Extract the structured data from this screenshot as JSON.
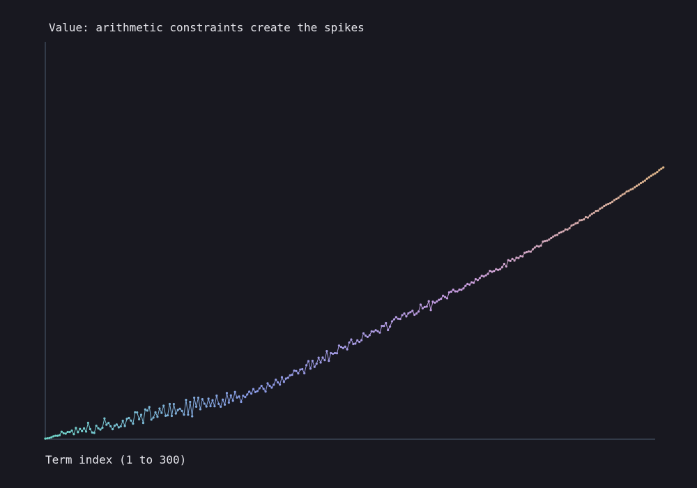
{
  "chart_data": {
    "type": "line",
    "title": "Value: arithmetic constraints create the spikes",
    "xlabel": "Term index (1 to 300)",
    "ylabel": "",
    "xlim": [
      1,
      300
    ],
    "ylim": [
      0,
      6000
    ],
    "grid": false,
    "legend": "none",
    "line_color_gradient": [
      "#6fd6c8",
      "#8a9be6",
      "#c79ce0",
      "#e2b88a"
    ],
    "axis_color": "#3a4656",
    "background": "#181820",
    "series": [
      {
        "values": [
          9,
          14,
          18,
          29,
          43,
          52,
          51,
          61,
          114,
          89,
          84,
          111,
          109,
          129,
          76,
          170,
          107,
          156,
          121,
          164,
          116,
          247,
          153,
          101,
          95,
          202,
          163,
          146,
          173,
          313,
          219,
          246,
          195,
          151,
          204,
          222,
          179,
          193,
          278,
          199,
          307,
          321,
          281,
          234,
          406,
          404,
          301,
          369,
          246,
          449,
          432,
          486,
          296,
          326,
          405,
          338,
          464,
          398,
          506,
          354,
          361,
          532,
          352,
          531,
          388,
          441,
          460,
          428,
          370,
          593,
          370,
          563,
          346,
          626,
          491,
          627,
          453,
          604,
          537,
          493,
          612,
          499,
          590,
          498,
          658,
          533,
          491,
          597,
          522,
          698,
          552,
          662,
          580,
          714,
          629,
          645,
          563,
          656,
          635,
          675,
          718,
          689,
          757,
          712,
          727,
          768,
          806,
          761,
          720,
          844,
          807,
          779,
          823,
          898,
          858,
          825,
          937,
          866,
          916,
          927,
          964,
          973,
          1035,
          1029,
          993,
          1052,
          1058,
          996,
          1117,
          1179,
          1066,
          1183,
          1092,
          1140,
          1230,
          1158,
          1233,
          1193,
          1330,
          1183,
          1300,
          1290,
          1300,
          1298,
          1414,
          1393,
          1375,
          1397,
          1357,
          1460,
          1506,
          1437,
          1443,
          1493,
          1468,
          1495,
          1599,
          1565,
          1543,
          1570,
          1629,
          1623,
          1645,
          1631,
          1609,
          1711,
          1709,
          1753,
          1647,
          1701,
          1779,
          1810,
          1844,
          1818,
          1815,
          1873,
          1897,
          1854,
          1900,
          1918,
          1938,
          1879,
          1897,
          1928,
          2032,
          1977,
          1996,
          2003,
          2084,
          1950,
          2077,
          2061,
          2081,
          2104,
          2120,
          2166,
          2146,
          2128,
          2217,
          2228,
          2258,
          2232,
          2231,
          2259,
          2257,
          2277,
          2315,
          2343,
          2334,
          2369,
          2363,
          2416,
          2402,
          2433,
          2469,
          2458,
          2473,
          2498,
          2542,
          2528,
          2540,
          2568,
          2555,
          2568,
          2597,
          2648,
          2609,
          2703,
          2691,
          2723,
          2697,
          2741,
          2735,
          2763,
          2759,
          2815,
          2825,
          2834,
          2831,
          2866,
          2895,
          2918,
          2909,
          2924,
          2983,
          2993,
          2999,
          3015,
          3037,
          3060,
          3076,
          3084,
          3113,
          3128,
          3139,
          3167,
          3166,
          3185,
          3226,
          3239,
          3258,
          3267,
          3305,
          3309,
          3319,
          3353,
          3346,
          3378,
          3402,
          3418,
          3446,
          3450,
          3482,
          3496,
          3521,
          3540,
          3553,
          3563,
          3586,
          3610,
          3628,
          3646,
          3671,
          3695,
          3708,
          3739,
          3749,
          3769,
          3780,
          3803,
          3828,
          3845,
          3868,
          3886,
          3904,
          3934,
          3953,
          3976,
          3998,
          4012,
          4035,
          4063,
          4083,
          4104
        ]
      }
    ]
  }
}
